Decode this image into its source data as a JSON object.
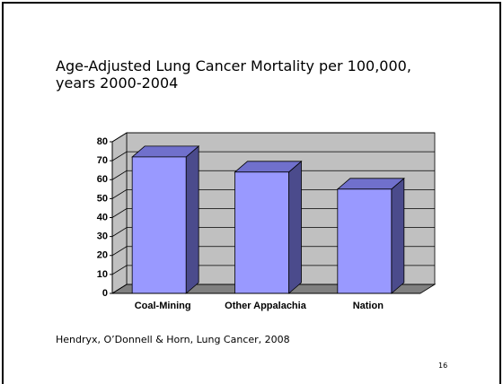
{
  "chart_data": {
    "type": "bar3d",
    "title": "Age-Adjusted Lung Cancer Mortality per 100,000, years 2000-2004",
    "categories": [
      "Coal-Mining",
      "Other Appalachia",
      "Nation"
    ],
    "values": [
      72,
      64,
      55
    ],
    "color": "#9999ff",
    "ylim": [
      0,
      80
    ],
    "yticks": [
      0,
      10,
      20,
      30,
      40,
      50,
      60,
      70,
      80
    ],
    "grid": true
  },
  "footnote": "Hendryx, O’Donnell & Horn, Lung Cancer, 2008",
  "slide_number": "16"
}
